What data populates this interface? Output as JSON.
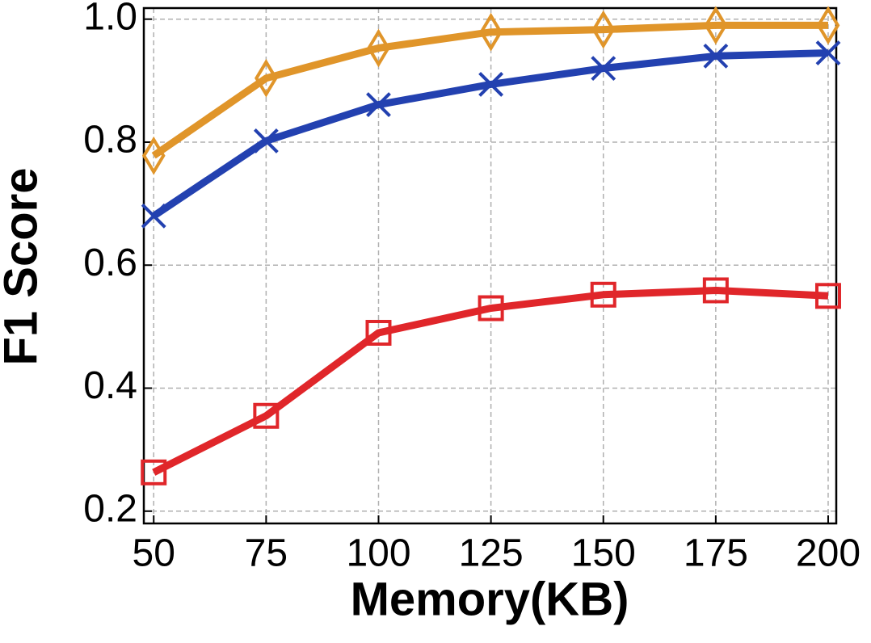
{
  "chart_data": {
    "type": "line",
    "x_label": "Memory(KB)",
    "y_label": "F1 Score",
    "x": [
      50,
      75,
      100,
      125,
      150,
      175,
      200
    ],
    "series": [
      {
        "color": "#e0952a",
        "marker": "diamond",
        "values": [
          0.778,
          0.904,
          0.953,
          0.979,
          0.983,
          0.99,
          0.99
        ]
      },
      {
        "color": "#2341b0",
        "marker": "x",
        "values": [
          0.68,
          0.802,
          0.861,
          0.894,
          0.92,
          0.94,
          0.945
        ]
      },
      {
        "color": "#e0262a",
        "marker": "square",
        "values": [
          0.263,
          0.355,
          0.49,
          0.53,
          0.552,
          0.559,
          0.55
        ]
      }
    ],
    "xlim": [
      47.8,
      201.8
    ],
    "xticks": [
      50,
      75,
      100,
      125,
      150,
      175,
      200
    ],
    "ylim": [
      0.18,
      1.018
    ],
    "yticks": [
      {
        "value": 0.2,
        "label": "0.2"
      },
      {
        "value": 0.4,
        "label": "0.4"
      },
      {
        "value": 0.6,
        "label": "0.6"
      },
      {
        "value": 0.8,
        "label": "0.8"
      },
      {
        "value": 1.0,
        "label": "1.0"
      }
    ],
    "grid": true
  }
}
